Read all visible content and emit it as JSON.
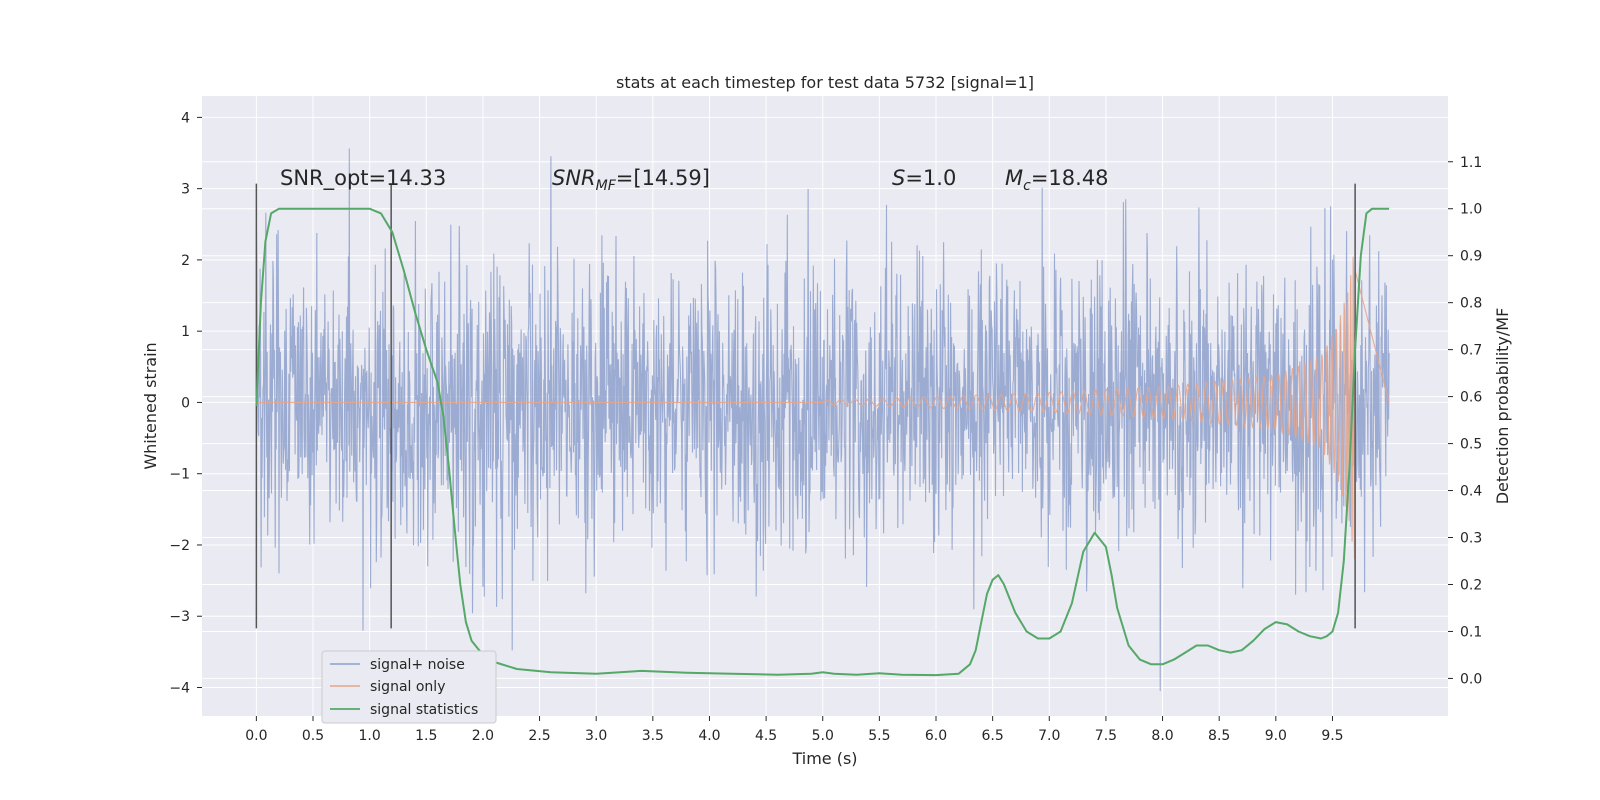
{
  "chart_data": {
    "type": "line",
    "title": "stats at each timestep for test data 5732 [signal=1]",
    "xlabel": "Time (s)",
    "ylabel": "Whitened strain",
    "y2label": "Detection probability/MF",
    "xlim": [
      -0.48,
      10.52
    ],
    "ylim": [
      -4.4,
      4.3
    ],
    "y2lim": [
      -0.08,
      1.24
    ],
    "xticks": [
      "0.0",
      "0.5",
      "1.0",
      "1.5",
      "2.0",
      "2.5",
      "3.0",
      "3.5",
      "4.0",
      "4.5",
      "5.0",
      "5.5",
      "6.0",
      "6.5",
      "7.0",
      "7.5",
      "8.0",
      "8.5",
      "9.0",
      "9.5"
    ],
    "yticks": [
      "4",
      "3",
      "2",
      "1",
      "0",
      "−1",
      "−2",
      "−3",
      "−4"
    ],
    "y2ticks": [
      "0.0",
      "0.1",
      "0.2",
      "0.3",
      "0.4",
      "0.5",
      "0.6",
      "0.7",
      "0.8",
      "0.9",
      "1.0",
      "1.1"
    ],
    "grid": true,
    "legend_placement": "lower-left",
    "annotations": {
      "snr_opt": "SNR_opt=14.33",
      "snr_mf_name": "SNR",
      "snr_mf_sub": "MF",
      "snr_mf_value": "=[14.59]",
      "s_name": "S",
      "s_value": "=1.0",
      "mc_name": "M",
      "mc_sub": "c",
      "mc_value": "=18.48"
    },
    "vlines": [
      {
        "x": 0.0,
        "ymin": -3.17,
        "ymax": 3.07
      },
      {
        "x": 1.19,
        "ymin": -3.17,
        "ymax": 3.07
      },
      {
        "x": 9.7,
        "ymin": -3.17,
        "ymax": 3.07
      }
    ],
    "series": [
      {
        "name": "signal+ noise",
        "color": "#8da0cb",
        "kind": "noise",
        "x_range": [
          0.0,
          10.0
        ],
        "typical_amplitude": 1.0,
        "max_value": 3.92,
        "min_value": -4.05
      },
      {
        "name": "signal only",
        "color": "#e5a58b",
        "kind": "chirp",
        "x_range": [
          5.0,
          9.7
        ],
        "amplitude_envelope": {
          "x": [
            5.0,
            6.0,
            7.0,
            8.0,
            9.0,
            9.4,
            9.55,
            9.65,
            9.7
          ],
          "y": [
            0.03,
            0.08,
            0.14,
            0.22,
            0.38,
            0.65,
            1.1,
            1.7,
            2.4
          ]
        }
      },
      {
        "name": "signal statistics",
        "color": "#55a868",
        "kind": "line",
        "axis": "right",
        "x": [
          0.0,
          0.04,
          0.08,
          0.13,
          0.2,
          0.3,
          0.5,
          0.8,
          1.0,
          1.1,
          1.15,
          1.2,
          1.3,
          1.4,
          1.5,
          1.6,
          1.65,
          1.7,
          1.75,
          1.8,
          1.85,
          1.9,
          2.0,
          2.1,
          2.3,
          2.6,
          3.0,
          3.4,
          3.8,
          4.2,
          4.6,
          4.9,
          5.0,
          5.1,
          5.3,
          5.5,
          5.7,
          6.0,
          6.2,
          6.3,
          6.35,
          6.4,
          6.45,
          6.5,
          6.55,
          6.6,
          6.7,
          6.8,
          6.9,
          7.0,
          7.1,
          7.2,
          7.3,
          7.4,
          7.5,
          7.55,
          7.6,
          7.7,
          7.8,
          7.9,
          8.0,
          8.1,
          8.2,
          8.3,
          8.4,
          8.5,
          8.6,
          8.7,
          8.8,
          8.9,
          9.0,
          9.1,
          9.2,
          9.3,
          9.4,
          9.45,
          9.5,
          9.55,
          9.6,
          9.65,
          9.7,
          9.75,
          9.8,
          9.85,
          9.9,
          10.0
        ],
        "y": [
          0.58,
          0.8,
          0.93,
          0.99,
          1.0,
          1.0,
          1.0,
          1.0,
          1.0,
          0.99,
          0.97,
          0.95,
          0.87,
          0.78,
          0.7,
          0.63,
          0.56,
          0.45,
          0.32,
          0.2,
          0.12,
          0.08,
          0.05,
          0.035,
          0.02,
          0.013,
          0.01,
          0.016,
          0.012,
          0.01,
          0.008,
          0.01,
          0.013,
          0.01,
          0.008,
          0.011,
          0.008,
          0.007,
          0.01,
          0.03,
          0.06,
          0.12,
          0.18,
          0.21,
          0.22,
          0.2,
          0.14,
          0.1,
          0.085,
          0.085,
          0.1,
          0.16,
          0.27,
          0.31,
          0.28,
          0.22,
          0.15,
          0.07,
          0.04,
          0.03,
          0.03,
          0.04,
          0.055,
          0.07,
          0.07,
          0.06,
          0.055,
          0.06,
          0.08,
          0.105,
          0.12,
          0.115,
          0.1,
          0.09,
          0.085,
          0.09,
          0.1,
          0.14,
          0.25,
          0.45,
          0.7,
          0.9,
          0.99,
          1.0,
          1.0,
          1.0
        ]
      }
    ]
  }
}
